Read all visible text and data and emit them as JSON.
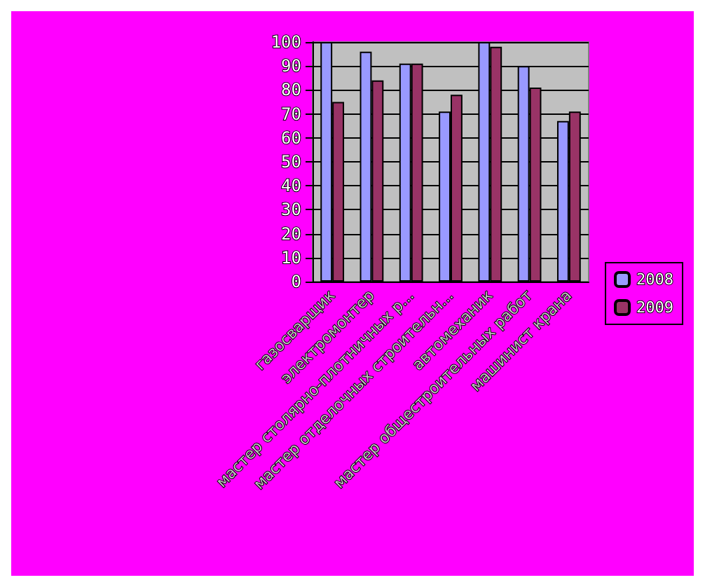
{
  "chart_data": {
    "type": "bar",
    "categories": [
      "газосварщик",
      "электромонтер",
      "мастер столярно-плотничных р...",
      "мастер отделочных строительн...",
      "автомеханик",
      "мастер общестроительных работ",
      "машинист крана"
    ],
    "series": [
      {
        "name": "2008",
        "color": "#9999ff",
        "values": [
          100,
          96,
          91,
          71,
          100,
          90,
          67
        ]
      },
      {
        "name": "2009",
        "color": "#993366",
        "values": [
          75,
          84,
          91,
          78,
          98,
          81,
          71
        ]
      }
    ],
    "ylim": [
      0,
      100
    ],
    "yticks": [
      0,
      10,
      20,
      30,
      40,
      50,
      60,
      70,
      80,
      90,
      100
    ],
    "grid": "y",
    "legend": "right"
  }
}
